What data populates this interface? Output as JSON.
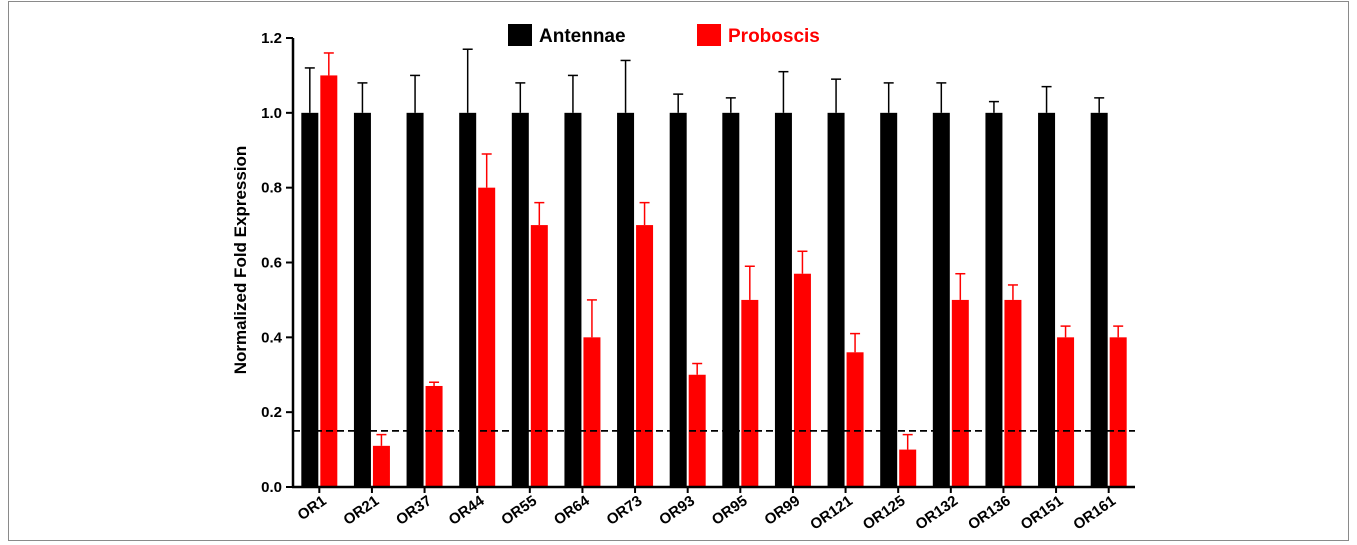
{
  "chart_data": {
    "type": "bar",
    "ylabel": "Normalized Fold Expression",
    "ylim": [
      0,
      1.2
    ],
    "yticks": [
      "0.0",
      "0.2",
      "0.4",
      "0.6",
      "0.8",
      "1.0",
      "1.2"
    ],
    "legend_position": "top-center",
    "threshold_line": 0.15,
    "categories": [
      "OR1",
      "OR21",
      "OR37",
      "OR44",
      "OR55",
      "OR64",
      "OR73",
      "OR93",
      "OR95",
      "OR99",
      "OR121",
      "OR125",
      "OR132",
      "OR136",
      "OR151",
      "OR161"
    ],
    "series": [
      {
        "name": "Antennae",
        "color": "#000000",
        "values": [
          1.0,
          1.0,
          1.0,
          1.0,
          1.0,
          1.0,
          1.0,
          1.0,
          1.0,
          1.0,
          1.0,
          1.0,
          1.0,
          1.0,
          1.0,
          1.0
        ],
        "errors": [
          0.12,
          0.08,
          0.1,
          0.17,
          0.08,
          0.1,
          0.14,
          0.05,
          0.04,
          0.11,
          0.09,
          0.08,
          0.08,
          0.03,
          0.07,
          0.04
        ]
      },
      {
        "name": "Proboscis",
        "color": "#ff0000",
        "values": [
          1.1,
          0.11,
          0.27,
          0.8,
          0.7,
          0.4,
          0.7,
          0.3,
          0.5,
          0.57,
          0.36,
          0.1,
          0.5,
          0.5,
          0.4,
          0.4
        ],
        "errors": [
          0.06,
          0.03,
          0.01,
          0.09,
          0.06,
          0.1,
          0.06,
          0.03,
          0.09,
          0.06,
          0.05,
          0.04,
          0.07,
          0.04,
          0.03,
          0.03
        ]
      }
    ]
  }
}
